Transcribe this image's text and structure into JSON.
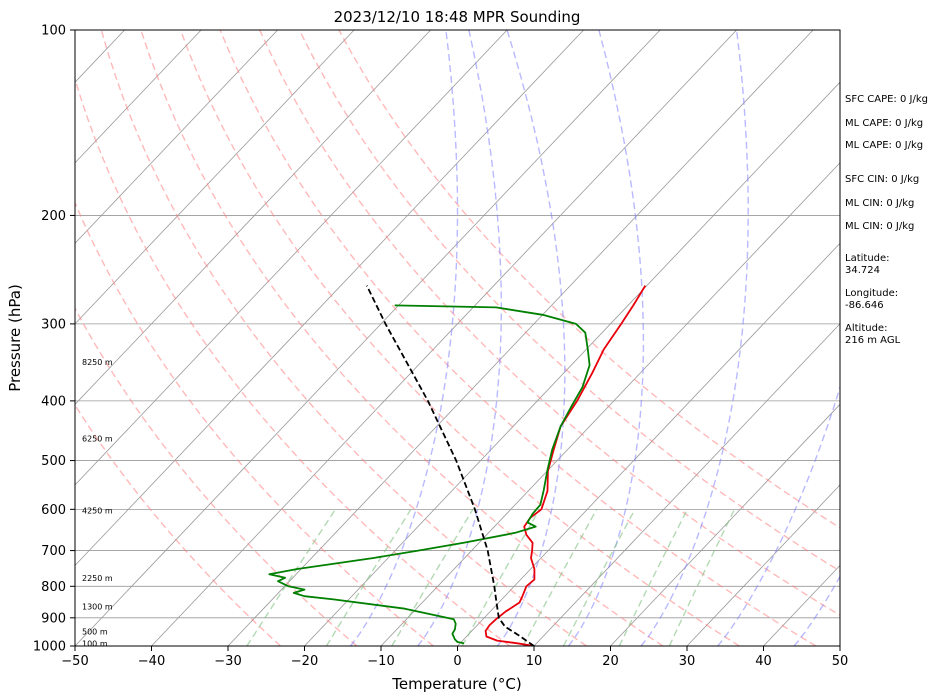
{
  "chart_data": {
    "type": "line",
    "subtype": "skew-t log-p",
    "title": "2023/12/10 18:48 MPR Sounding",
    "xlabel": "Temperature (°C)",
    "ylabel": "Pressure (hPa)",
    "xlim": [
      -50,
      50
    ],
    "ylim": [
      1000,
      100
    ],
    "y_scale": "log",
    "x_ticks": [
      "−50",
      "−40",
      "−30",
      "−20",
      "−10",
      "0",
      "10",
      "20",
      "30",
      "40",
      "50"
    ],
    "x_tick_values": [
      -50,
      -40,
      -30,
      -20,
      -10,
      0,
      10,
      20,
      30,
      40,
      50
    ],
    "y_ticks": [
      "100",
      "200",
      "300",
      "400",
      "500",
      "600",
      "700",
      "800",
      "900",
      "1000"
    ],
    "y_tick_values": [
      100,
      200,
      300,
      400,
      500,
      600,
      700,
      800,
      900,
      1000
    ],
    "grid": true,
    "series": [
      {
        "key": "temperature",
        "color": "#e8000b",
        "points": [
          [
            1000,
            10.0
          ],
          [
            990,
            7.5
          ],
          [
            980,
            4.5
          ],
          [
            965,
            2.6
          ],
          [
            945,
            1.8
          ],
          [
            925,
            1.6
          ],
          [
            905,
            1.7
          ],
          [
            880,
            2.0
          ],
          [
            850,
            2.7
          ],
          [
            830,
            2.3
          ],
          [
            800,
            1.6
          ],
          [
            780,
            1.8
          ],
          [
            750,
            0.5
          ],
          [
            720,
            -1.3
          ],
          [
            700,
            -2.1
          ],
          [
            680,
            -3.0
          ],
          [
            660,
            -4.8
          ],
          [
            640,
            -6.1
          ],
          [
            620,
            -6.4
          ],
          [
            600,
            -6.0
          ],
          [
            560,
            -7.5
          ],
          [
            520,
            -9.9
          ],
          [
            480,
            -11.8
          ],
          [
            440,
            -13.8
          ],
          [
            400,
            -14.8
          ],
          [
            360,
            -16.3
          ],
          [
            330,
            -17.7
          ],
          [
            300,
            -18.6
          ],
          [
            280,
            -19.3
          ],
          [
            260,
            -20.2
          ]
        ]
      },
      {
        "key": "dewpoint",
        "color": "#008000",
        "points": [
          [
            990,
            0.5
          ],
          [
            985,
            -0.5
          ],
          [
            975,
            -1.2
          ],
          [
            955,
            -2.2
          ],
          [
            940,
            -2.4
          ],
          [
            920,
            -3.0
          ],
          [
            905,
            -3.8
          ],
          [
            870,
            -11.5
          ],
          [
            840,
            -22.0
          ],
          [
            830,
            -26.2
          ],
          [
            820,
            -28.0
          ],
          [
            810,
            -27.0
          ],
          [
            800,
            -29.5
          ],
          [
            785,
            -31.5
          ],
          [
            775,
            -31.0
          ],
          [
            765,
            -33.5
          ],
          [
            750,
            -30.5
          ],
          [
            720,
            -22.0
          ],
          [
            700,
            -17.0
          ],
          [
            680,
            -12.0
          ],
          [
            655,
            -6.5
          ],
          [
            640,
            -4.6
          ],
          [
            630,
            -6.2
          ],
          [
            610,
            -6.6
          ],
          [
            590,
            -6.7
          ],
          [
            560,
            -8.0
          ],
          [
            520,
            -10.0
          ],
          [
            480,
            -12.0
          ],
          [
            440,
            -13.8
          ],
          [
            410,
            -14.8
          ],
          [
            380,
            -15.8
          ],
          [
            350,
            -17.6
          ],
          [
            330,
            -19.8
          ],
          [
            310,
            -22.2
          ],
          [
            300,
            -24.5
          ],
          [
            290,
            -30.0
          ],
          [
            282,
            -37.0
          ],
          [
            280,
            -50.5
          ]
        ]
      },
      {
        "key": "parcel",
        "color": "#000000",
        "style": "dashed",
        "points": [
          [
            1000,
            10.0
          ],
          [
            960,
            6.6
          ],
          [
            930,
            3.8
          ],
          [
            900,
            1.9
          ],
          [
            850,
            -0.3
          ],
          [
            800,
            -2.6
          ],
          [
            700,
            -7.9
          ],
          [
            600,
            -14.7
          ],
          [
            500,
            -23.2
          ],
          [
            400,
            -34.3
          ],
          [
            300,
            -49.4
          ],
          [
            260,
            -56.6
          ]
        ]
      }
    ],
    "height_labels": [
      {
        "label": "8250 m",
        "pressure": 346
      },
      {
        "label": "6250 m",
        "pressure": 460
      },
      {
        "label": "4250 m",
        "pressure": 603
      },
      {
        "label": "2250 m",
        "pressure": 775
      },
      {
        "label": "1300 m",
        "pressure": 862
      },
      {
        "label": "500 m",
        "pressure": 948
      },
      {
        "label": "100 m",
        "pressure": 990
      }
    ],
    "reference_lines": {
      "dry_adiabats_color": "#ff8080",
      "moist_adiabats_color": "#8080ff",
      "mixing_ratio_color": "#80c080",
      "isotherm_color": "#999999",
      "dry_adiabat_thetas": [
        250,
        260,
        270,
        280,
        290,
        300,
        310,
        320,
        330,
        340,
        350
      ],
      "moist_adiabat_theta_w": [
        -20,
        -10,
        0,
        10,
        15,
        20,
        25,
        30
      ],
      "moist_adiabat_endpoints": [
        [
          1000,
          -14,
          100,
          -78
        ],
        [
          1000,
          -5.2,
          100,
          -75
        ],
        [
          1000,
          5.2,
          100,
          -70
        ],
        [
          1000,
          14.5,
          100,
          -58
        ],
        [
          1000,
          24,
          100,
          -40
        ],
        [
          1000,
          34,
          100,
          -18
        ],
        [
          1000,
          44,
          100,
          -6
        ],
        [
          1000,
          50,
          100,
          42
        ]
      ],
      "mixing_ratios": [
        0.4,
        1,
        2,
        4,
        7,
        10,
        16,
        24
      ]
    }
  },
  "side_text": {
    "sfc_cape": "SFC CAPE: 0 J/kg",
    "ml_cape_1": "ML CAPE: 0 J/kg",
    "ml_cape_2": "ML CAPE: 0 J/kg",
    "sfc_cin": "SFC CIN: 0 J/kg",
    "ml_cin_1": "ML CIN: 0 J/kg",
    "ml_cin_2": "ML CIN: 0 J/kg",
    "latitude_label": "Latitude:",
    "latitude_value": "34.724",
    "longitude_label": "Longitude:",
    "longitude_value": "-86.646",
    "altitude_label": "Altitude:",
    "altitude_value": "216 m AGL"
  }
}
